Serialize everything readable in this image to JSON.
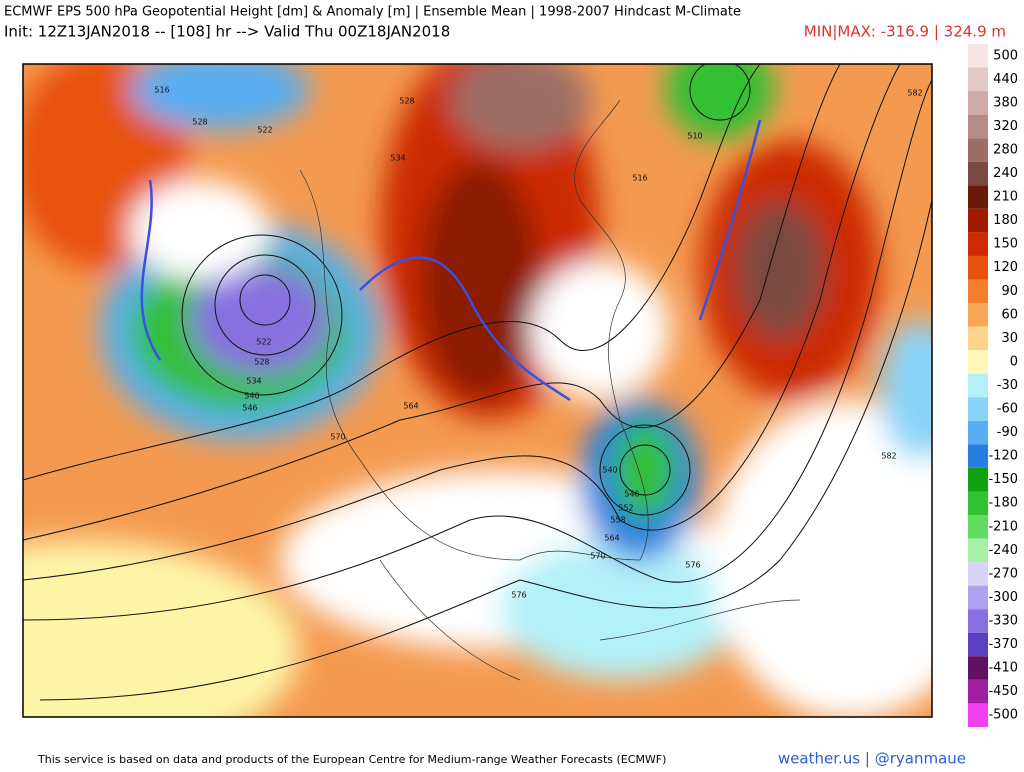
{
  "header": {
    "title": "ECMWF EPS 500 hPa Geopotential Height [dm] & Anomaly [m] | Ensemble Mean | 1998-2007 Hindcast M-Climate",
    "init": "Init: 12Z13JAN2018 -- [108] hr --> Valid Thu 00Z18JAN2018",
    "minmax": "MIN|MAX: -316.9 | 324.9 m"
  },
  "colorbar": {
    "levels": [
      500,
      440,
      380,
      320,
      280,
      240,
      210,
      180,
      150,
      120,
      90,
      60,
      30,
      0,
      -30,
      -60,
      -90,
      -120,
      -150,
      -180,
      -210,
      -240,
      -270,
      -300,
      -330,
      -370,
      -410,
      -450,
      -500
    ],
    "colors": [
      "#f4e4e4",
      "#e2c8c6",
      "#cfaaa6",
      "#b88c86",
      "#9c6e66",
      "#7a4a40",
      "#6a1a08",
      "#a01a02",
      "#cc2a02",
      "#e8520e",
      "#f47e2c",
      "#f8a656",
      "#fcd48a",
      "#fdf8b8",
      "#b4f0f8",
      "#88d4f8",
      "#58aef2",
      "#2a7ee0",
      "#10a010",
      "#30c030",
      "#60dc60",
      "#a8f0a8",
      "#d8d4f8",
      "#b0a0f0",
      "#8870e0",
      "#5a40c0",
      "#601060",
      "#a020a0",
      "#f040f0"
    ]
  },
  "contours": [
    "516",
    "528",
    "522",
    "534",
    "528",
    "510",
    "516",
    "582",
    "522",
    "528",
    "534",
    "540",
    "546",
    "564",
    "570",
    "576",
    "582",
    "540",
    "546",
    "552",
    "558",
    "564",
    "570",
    "576"
  ],
  "footer": {
    "credit": "This service is based on data and products of the European Centre for Medium-range Weather Forecasts (ECMWF)",
    "brand": "weather.us | @ryanmaue"
  }
}
